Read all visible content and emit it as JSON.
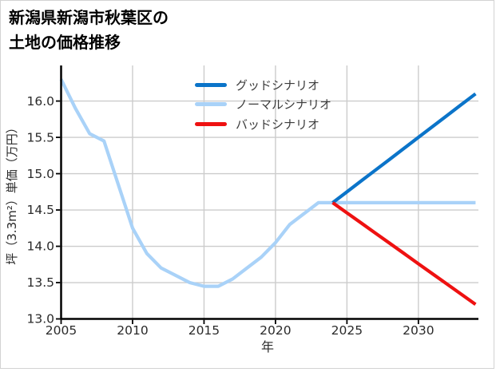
{
  "colors": {
    "background": "#ffffff",
    "card_border": "#d2d2d2",
    "grid": "#cccccc",
    "axis": "#000000",
    "tick_text": "#2a2a2a",
    "legend_text": "#3c3c3c",
    "title_text": "#000000"
  },
  "chart_data": {
    "type": "line",
    "title": "新潟県新潟市秋葉区の土地の価格推移",
    "title_lines": [
      "新潟県新潟市秋葉区の",
      "土地の価格推移"
    ],
    "xlabel": "年",
    "ylabel": "坪（3.3m²）単価（万円）",
    "xlim": [
      2005,
      2034.2
    ],
    "ylim": [
      13.0,
      16.49
    ],
    "xticks": [
      2005,
      2010,
      2015,
      2020,
      2025,
      2030
    ],
    "xtick_labels": [
      "2005",
      "2010",
      "2015",
      "2020",
      "2025",
      "2030"
    ],
    "yticks": [
      13.0,
      13.5,
      14.0,
      14.5,
      15.0,
      15.5,
      16.0
    ],
    "ytick_labels": [
      "13.0",
      "13.5",
      "14.0",
      "14.5",
      "15.0",
      "15.5",
      "16.0"
    ],
    "grid": true,
    "legend_position": "upper center",
    "draw_order": [
      1,
      0,
      2
    ],
    "series": [
      {
        "name": "グッドシナリオ",
        "role": "good",
        "color": "#0b74c9",
        "x": [
          2024,
          2025,
          2026,
          2027,
          2028,
          2029,
          2030,
          2031,
          2032,
          2033,
          2034
        ],
        "y": [
          14.6,
          14.75,
          14.9,
          15.05,
          15.2,
          15.35,
          15.5,
          15.65,
          15.8,
          15.95,
          16.1
        ]
      },
      {
        "name": "ノーマルシナリオ",
        "role": "normal",
        "color": "#a9d2f8",
        "x": [
          2005,
          2006,
          2007,
          2008,
          2009,
          2010,
          2011,
          2012,
          2013,
          2014,
          2015,
          2016,
          2017,
          2018,
          2019,
          2020,
          2021,
          2022,
          2023,
          2024,
          2025,
          2026,
          2027,
          2028,
          2029,
          2030,
          2031,
          2032,
          2033,
          2034
        ],
        "y": [
          16.3,
          15.9,
          15.55,
          15.45,
          14.85,
          14.25,
          13.9,
          13.7,
          13.6,
          13.5,
          13.45,
          13.45,
          13.55,
          13.7,
          13.85,
          14.05,
          14.3,
          14.45,
          14.6,
          14.6,
          14.6,
          14.6,
          14.6,
          14.6,
          14.6,
          14.6,
          14.6,
          14.6,
          14.6,
          14.6
        ]
      },
      {
        "name": "バッドシナリオ",
        "role": "bad",
        "color": "#ee1111",
        "x": [
          2024,
          2025,
          2026,
          2027,
          2028,
          2029,
          2030,
          2031,
          2032,
          2033,
          2034
        ],
        "y": [
          14.6,
          14.46,
          14.32,
          14.18,
          14.04,
          13.9,
          13.76,
          13.62,
          13.48,
          13.34,
          13.2
        ]
      }
    ]
  }
}
